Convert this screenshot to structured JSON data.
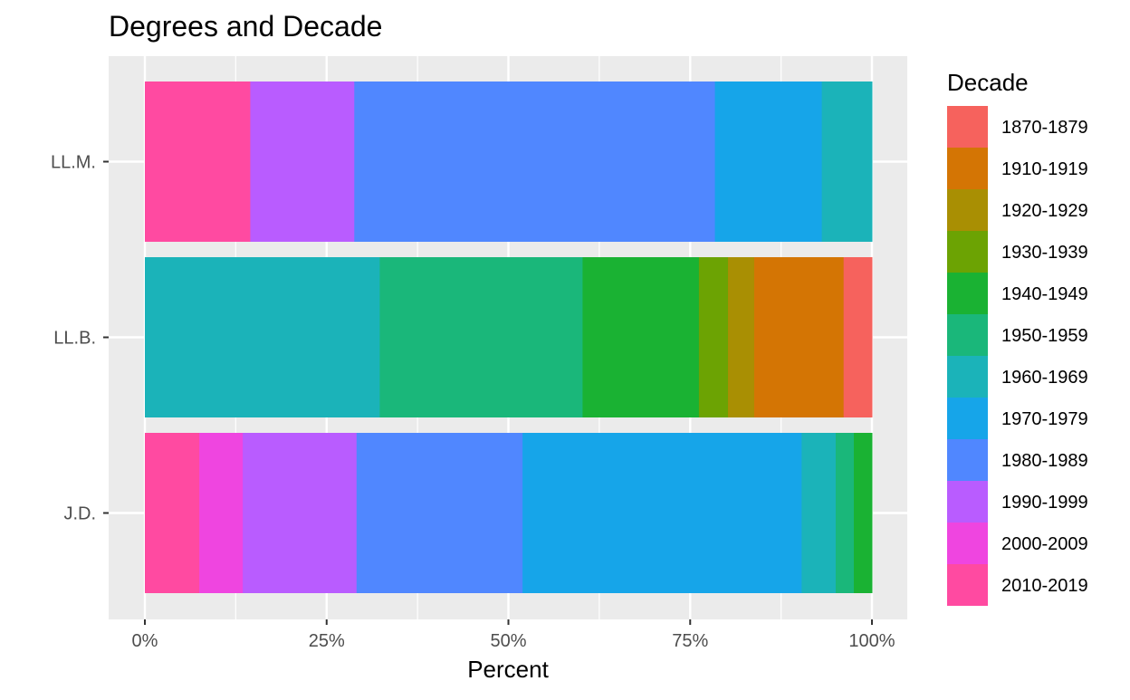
{
  "chart_data": {
    "type": "bar",
    "orientation": "horizontal",
    "stacked": "percent",
    "title": "Degrees and Decade",
    "xlabel": "Percent",
    "ylabel": "",
    "xlim": [
      0,
      100
    ],
    "x_ticks": [
      "0%",
      "25%",
      "50%",
      "75%",
      "100%"
    ],
    "categories": [
      "LL.M.",
      "LL.B.",
      "J.D."
    ],
    "legend": {
      "title": "Decade",
      "position": "right"
    },
    "grid": true,
    "series": [
      {
        "name": "2010-2019",
        "color": "#FF4AA1",
        "values": [
          14.5,
          0,
          7.5
        ]
      },
      {
        "name": "2000-2009",
        "color": "#EF45E0",
        "values": [
          0,
          0,
          6.0
        ]
      },
      {
        "name": "1990-1999",
        "color": "#B95CFF",
        "values": [
          14.3,
          0,
          15.7
        ]
      },
      {
        "name": "1980-1989",
        "color": "#5087FF",
        "values": [
          49.6,
          0,
          22.9
        ]
      },
      {
        "name": "1970-1979",
        "color": "#16A5E9",
        "values": [
          14.7,
          0,
          38.5
        ]
      },
      {
        "name": "1960-1969",
        "color": "#1BB3B9",
        "values": [
          6.9,
          32.3,
          4.7
        ]
      },
      {
        "name": "1950-1959",
        "color": "#1AB77A",
        "values": [
          0,
          27.9,
          2.5
        ]
      },
      {
        "name": "1940-1949",
        "color": "#1AB233",
        "values": [
          0,
          16.0,
          2.5
        ]
      },
      {
        "name": "1930-1939",
        "color": "#6CA303",
        "values": [
          0,
          4.0,
          0
        ]
      },
      {
        "name": "1920-1929",
        "color": "#A98F03",
        "values": [
          0,
          3.6,
          0
        ]
      },
      {
        "name": "1910-1919",
        "color": "#D47504",
        "values": [
          0,
          12.3,
          0
        ]
      },
      {
        "name": "1870-1879",
        "color": "#F6625D",
        "values": [
          0,
          3.9,
          0
        ]
      }
    ],
    "legend_order": [
      "1870-1879",
      "1910-1919",
      "1920-1929",
      "1930-1939",
      "1940-1949",
      "1950-1959",
      "1960-1969",
      "1970-1979",
      "1980-1989",
      "1990-1999",
      "2000-2009",
      "2010-2019"
    ]
  }
}
